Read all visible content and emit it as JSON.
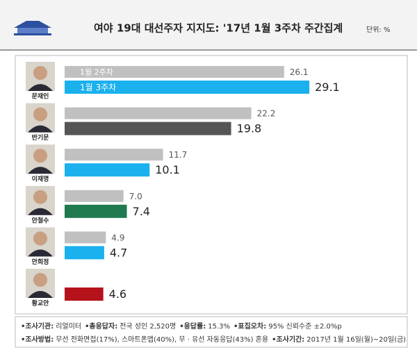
{
  "chart_data": {
    "type": "bar",
    "orientation": "horizontal",
    "title": "여야 19대 대선주자 지지도: '17년 1월 3주차 주간집계",
    "unit": "단위: %",
    "categories": [
      "문재인",
      "반기문",
      "이재명",
      "안철수",
      "안희정",
      "황교안"
    ],
    "xlim": [
      0,
      30
    ],
    "series": [
      {
        "name": "1월 2주차",
        "color": "#c0c0c0",
        "values": [
          26.1,
          22.2,
          11.7,
          7.0,
          4.9,
          null
        ],
        "value_labels": [
          "26.1",
          "22.2",
          "11.7",
          "7.0",
          "4.9",
          null
        ]
      },
      {
        "name": "1월 3주차",
        "colors": [
          "#1bb0ee",
          "#555555",
          "#1bb0ee",
          "#1f7a50",
          "#1bb0ee",
          "#b5121b"
        ],
        "values": [
          29.1,
          19.8,
          10.1,
          7.4,
          4.7,
          4.6
        ]
      }
    ],
    "notes": [
      [
        [
          "•조사기관:",
          "리얼미터"
        ],
        [
          "•총응답자:",
          "전국 성인 2,520명"
        ],
        [
          "•응답률:",
          "15.3%"
        ],
        [
          "•표집오차:",
          "95% 신뢰수준 ±2.0%p"
        ]
      ],
      [
        [
          "•조사방법:",
          "무선 전화면접(17%), 스마트폰앱(40%), 무 · 유선 자동응답(43%) 혼용"
        ],
        [
          "•조사기간:",
          "2017년 1월 16일(월)~20일(금)"
        ]
      ]
    ]
  }
}
